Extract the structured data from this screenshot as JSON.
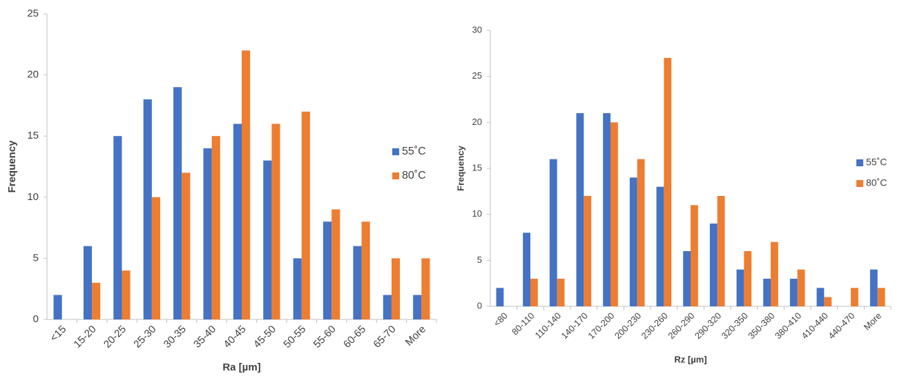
{
  "chart_data": [
    {
      "type": "bar",
      "x_label": "Ra [µm]",
      "y_label": "Frequency",
      "categories": [
        "<15",
        "15-20",
        "20-25",
        "25-30",
        "30-35",
        "35-40",
        "40-45",
        "45-50",
        "50-55",
        "55-60",
        "60-65",
        "65-70",
        "More"
      ],
      "series": [
        {
          "name": "55˚C",
          "color": "#4472c4",
          "values": [
            2,
            6,
            15,
            18,
            19,
            14,
            16,
            13,
            5,
            8,
            6,
            2,
            2
          ]
        },
        {
          "name": "80˚C",
          "color": "#ed7d31",
          "values": [
            0,
            3,
            4,
            10,
            12,
            15,
            22,
            16,
            17,
            9,
            8,
            5,
            5
          ]
        }
      ],
      "ylim": [
        0,
        25
      ],
      "yticks": [
        0,
        5,
        10,
        15,
        20,
        25
      ],
      "grid": false,
      "legend": "right"
    },
    {
      "type": "bar",
      "x_label": "Rz [µm]",
      "y_label": "Frequency",
      "categories": [
        "<80",
        "80-110",
        "110-140",
        "140-170",
        "170-200",
        "200-230",
        "230-260",
        "260-290",
        "290-320",
        "320-350",
        "350-380",
        "380-410",
        "410-440",
        "440-470",
        "More"
      ],
      "series": [
        {
          "name": "55˚C",
          "color": "#4472c4",
          "values": [
            2,
            8,
            16,
            21,
            21,
            14,
            13,
            6,
            9,
            4,
            3,
            3,
            2,
            0,
            4
          ]
        },
        {
          "name": "80˚C",
          "color": "#ed7d31",
          "values": [
            0,
            3,
            3,
            12,
            20,
            16,
            27,
            11,
            12,
            6,
            7,
            4,
            1,
            2,
            2
          ]
        }
      ],
      "ylim": [
        0,
        30
      ],
      "yticks": [
        0,
        5,
        10,
        15,
        20,
        25,
        30
      ],
      "grid": false,
      "legend": "right"
    }
  ]
}
